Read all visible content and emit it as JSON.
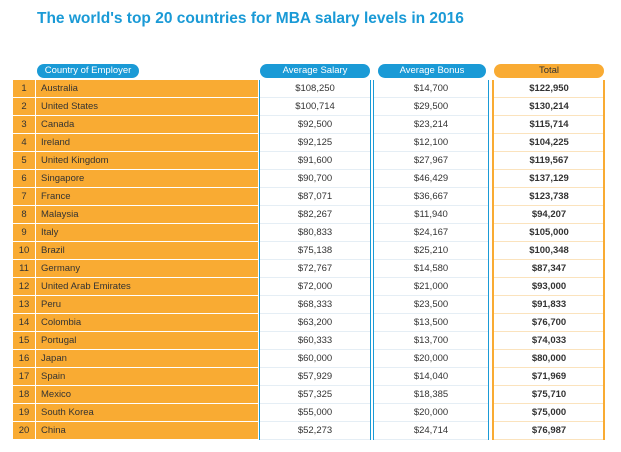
{
  "title": "The world's top 20 countries for MBA salary levels in 2016",
  "headers": {
    "country": "Country of Employer",
    "salary": "Average Salary",
    "bonus": "Average Bonus",
    "total": "Total"
  },
  "colors": {
    "blue": "#1a9ad6",
    "orange": "#f9ab33"
  },
  "rows": [
    {
      "rank": "1",
      "country": "Australia",
      "salary": "$108,250",
      "bonus": "$14,700",
      "total": "$122,950"
    },
    {
      "rank": "2",
      "country": "United States",
      "salary": "$100,714",
      "bonus": "$29,500",
      "total": "$130,214"
    },
    {
      "rank": "3",
      "country": "Canada",
      "salary": "$92,500",
      "bonus": "$23,214",
      "total": "$115,714"
    },
    {
      "rank": "4",
      "country": "Ireland",
      "salary": "$92,125",
      "bonus": "$12,100",
      "total": "$104,225"
    },
    {
      "rank": "5",
      "country": "United Kingdom",
      "salary": "$91,600",
      "bonus": "$27,967",
      "total": "$119,567"
    },
    {
      "rank": "6",
      "country": "Singapore",
      "salary": "$90,700",
      "bonus": "$46,429",
      "total": "$137,129"
    },
    {
      "rank": "7",
      "country": "France",
      "salary": "$87,071",
      "bonus": "$36,667",
      "total": "$123,738"
    },
    {
      "rank": "8",
      "country": "Malaysia",
      "salary": "$82,267",
      "bonus": "$11,940",
      "total": "$94,207"
    },
    {
      "rank": "9",
      "country": "Italy",
      "salary": "$80,833",
      "bonus": "$24,167",
      "total": "$105,000"
    },
    {
      "rank": "10",
      "country": "Brazil",
      "salary": "$75,138",
      "bonus": "$25,210",
      "total": "$100,348"
    },
    {
      "rank": "11",
      "country": "Germany",
      "salary": "$72,767",
      "bonus": "$14,580",
      "total": "$87,347"
    },
    {
      "rank": "12",
      "country": "United Arab Emirates",
      "salary": "$72,000",
      "bonus": "$21,000",
      "total": "$93,000"
    },
    {
      "rank": "13",
      "country": "Peru",
      "salary": "$68,333",
      "bonus": "$23,500",
      "total": "$91,833"
    },
    {
      "rank": "14",
      "country": "Colombia",
      "salary": "$63,200",
      "bonus": "$13,500",
      "total": "$76,700"
    },
    {
      "rank": "15",
      "country": "Portugal",
      "salary": "$60,333",
      "bonus": "$13,700",
      "total": "$74,033"
    },
    {
      "rank": "16",
      "country": "Japan",
      "salary": "$60,000",
      "bonus": "$20,000",
      "total": "$80,000"
    },
    {
      "rank": "17",
      "country": "Spain",
      "salary": "$57,929",
      "bonus": "$14,040",
      "total": "$71,969"
    },
    {
      "rank": "18",
      "country": "Mexico",
      "salary": "$57,325",
      "bonus": "$18,385",
      "total": "$75,710"
    },
    {
      "rank": "19",
      "country": "South Korea",
      "salary": "$55,000",
      "bonus": "$20,000",
      "total": "$75,000"
    },
    {
      "rank": "20",
      "country": "China",
      "salary": "$52,273",
      "bonus": "$24,714",
      "total": "$76,987"
    }
  ]
}
